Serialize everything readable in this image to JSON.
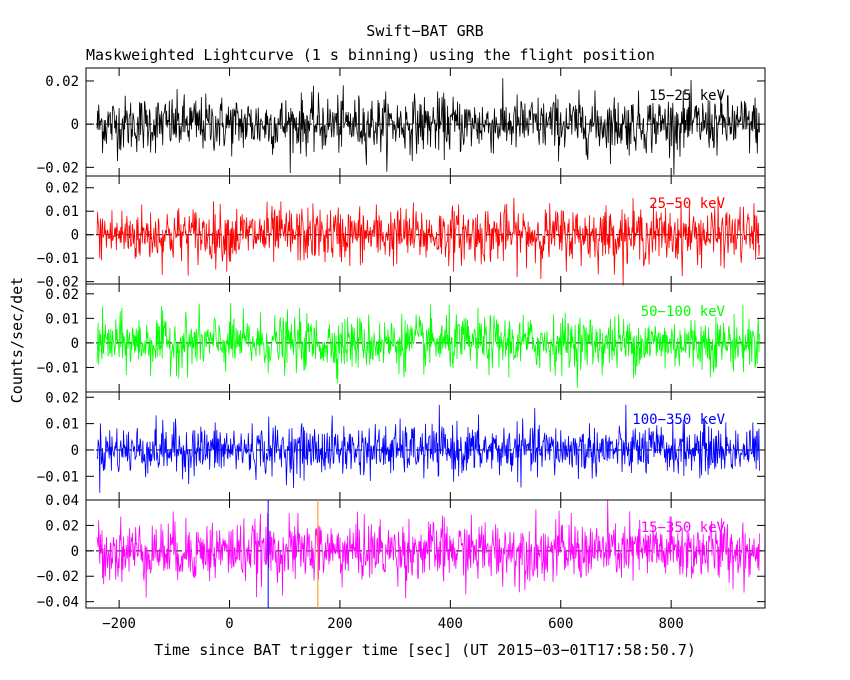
{
  "chart_data": {
    "type": "line",
    "title": "Swift−BAT GRB",
    "subtitle": "Maskweighted Lightcurve (1 s binning) using the flight position",
    "xlabel": "Time since BAT trigger time [sec] (UT 2015−03−01T17:58:50.7)",
    "ylabel": "Counts/sec/det",
    "xlim": [
      -260,
      970
    ],
    "x_range_data": [
      -240,
      960
    ],
    "x_ticks": [
      {
        "value": -200,
        "label": "−200"
      },
      {
        "value": 0,
        "label": "0"
      },
      {
        "value": 200,
        "label": "200"
      },
      {
        "value": 400,
        "label": "400"
      },
      {
        "value": 600,
        "label": "600"
      },
      {
        "value": 800,
        "label": "800"
      }
    ],
    "markers": [
      {
        "x": 70,
        "color": "#0000ff",
        "panel": 4
      },
      {
        "x": 160,
        "color": "#ff8c00",
        "panel": 4
      }
    ],
    "panels": [
      {
        "band": "15−25 keV",
        "color": "#000000",
        "ylim": [
          -0.024,
          0.026
        ],
        "noise_sigma": 0.0065,
        "y_ticks": [
          {
            "value": 0.02,
            "label": "0.02"
          },
          {
            "value": 0,
            "label": "0"
          },
          {
            "value": -0.02,
            "label": "−0.02"
          }
        ]
      },
      {
        "band": "25−50 keV",
        "color": "#ff0000",
        "ylim": [
          -0.021,
          0.025
        ],
        "noise_sigma": 0.006,
        "y_ticks": [
          {
            "value": 0.02,
            "label": "0.02"
          },
          {
            "value": 0.01,
            "label": "0.01"
          },
          {
            "value": 0,
            "label": "0"
          },
          {
            "value": -0.01,
            "label": "−0.01"
          },
          {
            "value": -0.02,
            "label": "−0.02"
          }
        ]
      },
      {
        "band": "50−100 keV",
        "color": "#00ff00",
        "ylim": [
          -0.02,
          0.024
        ],
        "noise_sigma": 0.0055,
        "y_ticks": [
          {
            "value": 0.02,
            "label": "0.02"
          },
          {
            "value": 0.01,
            "label": "0.01"
          },
          {
            "value": 0,
            "label": "0"
          },
          {
            "value": -0.01,
            "label": "−0.01"
          }
        ]
      },
      {
        "band": "100−350 keV",
        "color": "#0000ff",
        "ylim": [
          -0.019,
          0.022
        ],
        "noise_sigma": 0.0048,
        "y_ticks": [
          {
            "value": 0.02,
            "label": "0.02"
          },
          {
            "value": 0.01,
            "label": "0.01"
          },
          {
            "value": 0,
            "label": "0"
          },
          {
            "value": -0.01,
            "label": "−0.01"
          }
        ]
      },
      {
        "band": "15−350 keV",
        "color": "#ff00ff",
        "ylim": [
          -0.045,
          0.04
        ],
        "noise_sigma": 0.012,
        "y_ticks": [
          {
            "value": 0.04,
            "label": "0.04"
          },
          {
            "value": 0.02,
            "label": "0.02"
          },
          {
            "value": 0,
            "label": "0"
          },
          {
            "value": -0.02,
            "label": "−0.02"
          },
          {
            "value": -0.04,
            "label": "−0.04"
          }
        ]
      }
    ]
  }
}
